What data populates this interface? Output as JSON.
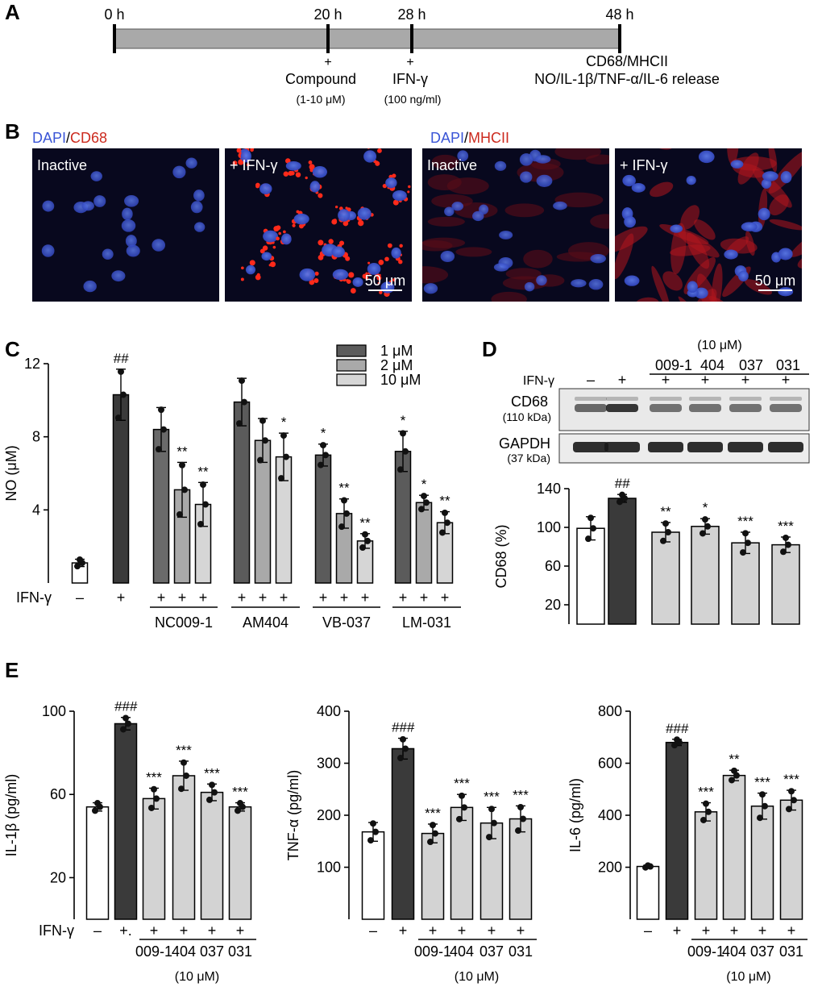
{
  "panels": {
    "A": {
      "label": "A",
      "time_ticks": [
        "0 h",
        "20 h",
        "28 h",
        "48 h"
      ],
      "events": [
        {
          "plus": "+",
          "line1": "Compound",
          "line2": "(1-10 μM)"
        },
        {
          "plus": "+",
          "line1": "IFN-γ",
          "line2": "(100 ng/ml)"
        },
        {
          "line1": "CD68/MHCII",
          "line2": "NO/IL-1β/TNF-α/IL-6 release"
        }
      ]
    },
    "B": {
      "label": "B",
      "stain_left": {
        "dapi": "DAPI",
        "sep": "/",
        "marker": "CD68"
      },
      "stain_right": {
        "dapi": "DAPI",
        "sep": "/",
        "marker": "MHCII"
      },
      "images": [
        {
          "label": "Inactive",
          "scale": ""
        },
        {
          "label": "+ IFN-γ",
          "scale": "50 μm"
        },
        {
          "label": "Inactive",
          "scale": ""
        },
        {
          "label": "+ IFN-γ",
          "scale": "50 μm"
        }
      ]
    },
    "D": {
      "label": "D",
      "conc": "(10 μM)",
      "compounds": [
        "009-1",
        "404",
        "037",
        "031"
      ],
      "ifn_label": "IFN-γ",
      "ifn_signs": [
        "–",
        "+",
        "+",
        "+",
        "+",
        "+"
      ],
      "blot_rows": [
        {
          "name": "CD68",
          "kda": "(110 kDa)"
        },
        {
          "name": "GAPDH",
          "kda": "(37 kDa)"
        }
      ]
    }
  },
  "chart_data": [
    {
      "id": "C",
      "type": "bar",
      "panel_label": "C",
      "ylabel": "NO (μM)",
      "ylim": [
        0,
        12
      ],
      "yticks": [
        4,
        8,
        12
      ],
      "ifn_label": "IFN-γ",
      "ifn_signs": [
        "–",
        "+",
        "+",
        "+",
        "+",
        "+",
        "+",
        "+",
        "+",
        "+",
        "+",
        "+",
        "+",
        "+"
      ],
      "group_labels": [
        "NC009-1",
        "AM404",
        "VB-037",
        "LM-031"
      ],
      "legend": [
        "1 μM",
        "2 μM",
        "10 μM"
      ],
      "colors": {
        "ctrl": "#ffffff",
        "ifn": "#3a3a3a",
        "c1": "#5b5b5b",
        "c2": "#a9a9a9",
        "c10": "#d6d6d6",
        "nc1": "#6a6a6a"
      },
      "bars": [
        {
          "value": 1.1,
          "err": 0.2,
          "fill": "ctrl",
          "stat": ""
        },
        {
          "value": 10.3,
          "err": 1.4,
          "fill": "ifn",
          "stat": "##"
        },
        {
          "value": 8.4,
          "err": 1.2,
          "fill": "nc1",
          "stat": ""
        },
        {
          "value": 5.1,
          "err": 1.5,
          "fill": "c2",
          "stat": "**"
        },
        {
          "value": 4.3,
          "err": 1.2,
          "fill": "c10",
          "stat": "**"
        },
        {
          "value": 9.9,
          "err": 1.3,
          "fill": "c1",
          "stat": ""
        },
        {
          "value": 7.8,
          "err": 1.2,
          "fill": "c2",
          "stat": ""
        },
        {
          "value": 6.9,
          "err": 1.3,
          "fill": "c10",
          "stat": "*"
        },
        {
          "value": 7.0,
          "err": 0.6,
          "fill": "c1",
          "stat": "*"
        },
        {
          "value": 3.8,
          "err": 0.8,
          "fill": "c2",
          "stat": "**"
        },
        {
          "value": 2.3,
          "err": 0.4,
          "fill": "c10",
          "stat": "**"
        },
        {
          "value": 7.2,
          "err": 1.1,
          "fill": "c1",
          "stat": "*"
        },
        {
          "value": 4.4,
          "err": 0.4,
          "fill": "c2",
          "stat": "*"
        },
        {
          "value": 3.3,
          "err": 0.6,
          "fill": "c10",
          "stat": "**"
        }
      ]
    },
    {
      "id": "D",
      "type": "bar",
      "ylabel": "CD68 (%)",
      "ylim": [
        0,
        140
      ],
      "yticks": [
        20,
        60,
        100,
        140
      ],
      "colors": {
        "ctrl": "#ffffff",
        "ifn": "#3a3a3a",
        "cmp": "#d3d3d3"
      },
      "bars": [
        {
          "value": 99,
          "err": 12,
          "fill": "ctrl",
          "stat": ""
        },
        {
          "value": 130,
          "err": 4,
          "fill": "ifn",
          "stat": "##"
        },
        {
          "value": 95,
          "err": 10,
          "fill": "cmp",
          "stat": "**"
        },
        {
          "value": 101,
          "err": 8,
          "fill": "cmp",
          "stat": "*"
        },
        {
          "value": 84,
          "err": 11,
          "fill": "cmp",
          "stat": "***"
        },
        {
          "value": 82,
          "err": 8,
          "fill": "cmp",
          "stat": "***"
        }
      ]
    },
    {
      "id": "E1",
      "type": "bar",
      "panel_label": "E",
      "ylabel": "IL-1β (pg/ml)",
      "ylim": [
        0,
        100
      ],
      "yticks": [
        20,
        60,
        100
      ],
      "ifn_label": "IFN-γ",
      "ifn_signs": [
        "–",
        "+.",
        "+",
        "+",
        "+",
        "+"
      ],
      "categories": [
        "009-1",
        "404",
        "037",
        "031"
      ],
      "conc": "(10 μM)",
      "colors": {
        "ctrl": "#ffffff",
        "ifn": "#3a3a3a",
        "cmp": "#d3d3d3"
      },
      "bars": [
        {
          "value": 54,
          "err": 2,
          "fill": "ctrl",
          "stat": ""
        },
        {
          "value": 94,
          "err": 3,
          "fill": "ifn",
          "stat": "###"
        },
        {
          "value": 58,
          "err": 5,
          "fill": "cmp",
          "stat": "***"
        },
        {
          "value": 69,
          "err": 7,
          "fill": "cmp",
          "stat": "***"
        },
        {
          "value": 61,
          "err": 4,
          "fill": "cmp",
          "stat": "***"
        },
        {
          "value": 54,
          "err": 2,
          "fill": "cmp",
          "stat": "***"
        }
      ]
    },
    {
      "id": "E2",
      "type": "bar",
      "ylabel": "TNF-α (pg/ml)",
      "ylim": [
        0,
        400
      ],
      "yticks": [
        100,
        200,
        300,
        400
      ],
      "ifn_signs": [
        "–",
        "+",
        "+",
        "+",
        "+",
        "+"
      ],
      "categories": [
        "009-1",
        "404",
        "037",
        "031"
      ],
      "conc": "(10 μM)",
      "colors": {
        "ctrl": "#ffffff",
        "ifn": "#3a3a3a",
        "cmp": "#d3d3d3"
      },
      "bars": [
        {
          "value": 168,
          "err": 18,
          "fill": "ctrl",
          "stat": ""
        },
        {
          "value": 328,
          "err": 20,
          "fill": "ifn",
          "stat": "###"
        },
        {
          "value": 165,
          "err": 18,
          "fill": "cmp",
          "stat": "***"
        },
        {
          "value": 215,
          "err": 25,
          "fill": "cmp",
          "stat": "***"
        },
        {
          "value": 185,
          "err": 30,
          "fill": "cmp",
          "stat": "***"
        },
        {
          "value": 193,
          "err": 25,
          "fill": "cmp",
          "stat": "***"
        }
      ]
    },
    {
      "id": "E3",
      "type": "bar",
      "ylabel": "IL-6 (pg/ml)",
      "ylim": [
        0,
        800
      ],
      "yticks": [
        200,
        400,
        600,
        800
      ],
      "ifn_signs": [
        "–",
        "+",
        "+",
        "+",
        "+",
        "+"
      ],
      "categories": [
        "009-1",
        "404",
        "037",
        "031"
      ],
      "conc": "(10 μM)",
      "colors": {
        "ctrl": "#ffffff",
        "ifn": "#3a3a3a",
        "cmp": "#d3d3d3"
      },
      "bars": [
        {
          "value": 203,
          "err": 4,
          "fill": "ctrl",
          "stat": ""
        },
        {
          "value": 680,
          "err": 12,
          "fill": "ifn",
          "stat": "###"
        },
        {
          "value": 413,
          "err": 35,
          "fill": "cmp",
          "stat": "***"
        },
        {
          "value": 553,
          "err": 20,
          "fill": "cmp",
          "stat": "**"
        },
        {
          "value": 435,
          "err": 50,
          "fill": "cmp",
          "stat": "***"
        },
        {
          "value": 458,
          "err": 38,
          "fill": "cmp",
          "stat": "***"
        }
      ]
    }
  ]
}
